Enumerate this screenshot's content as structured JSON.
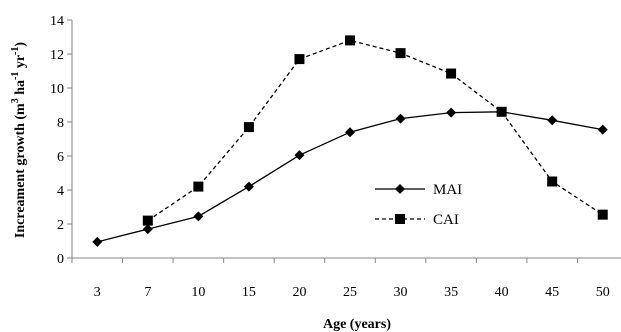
{
  "chart_data": {
    "type": "line",
    "categories": [
      "3",
      "7",
      "10",
      "15",
      "20",
      "25",
      "30",
      "35",
      "40",
      "45",
      "50"
    ],
    "series": [
      {
        "name": "MAI",
        "values": [
          0.95,
          1.7,
          2.45,
          4.2,
          6.05,
          7.4,
          8.2,
          8.55,
          8.6,
          8.1,
          7.55
        ],
        "line_style": "solid",
        "marker": "diamond"
      },
      {
        "name": "CAI",
        "values": [
          null,
          2.2,
          4.2,
          7.7,
          11.7,
          12.8,
          12.05,
          10.85,
          8.6,
          4.5,
          2.55
        ],
        "line_style": "dashed",
        "marker": "square"
      }
    ],
    "xlabel": "Age (years)",
    "ylabel_parts": [
      {
        "text": "Increament growth (m",
        "sup": false
      },
      {
        "text": "3",
        "sup": true
      },
      {
        "text": " ha",
        "sup": false
      },
      {
        "text": "-1",
        "sup": true
      },
      {
        "text": " yr",
        "sup": false
      },
      {
        "text": "-1",
        "sup": true
      },
      {
        "text": ")",
        "sup": false
      }
    ],
    "ylim": [
      0,
      14
    ],
    "yticks": [
      0,
      2,
      4,
      6,
      8,
      10,
      12,
      14
    ],
    "grid": false,
    "legend_position": "right-center",
    "colors": {
      "line": "#000000",
      "axis": "#868686"
    }
  }
}
